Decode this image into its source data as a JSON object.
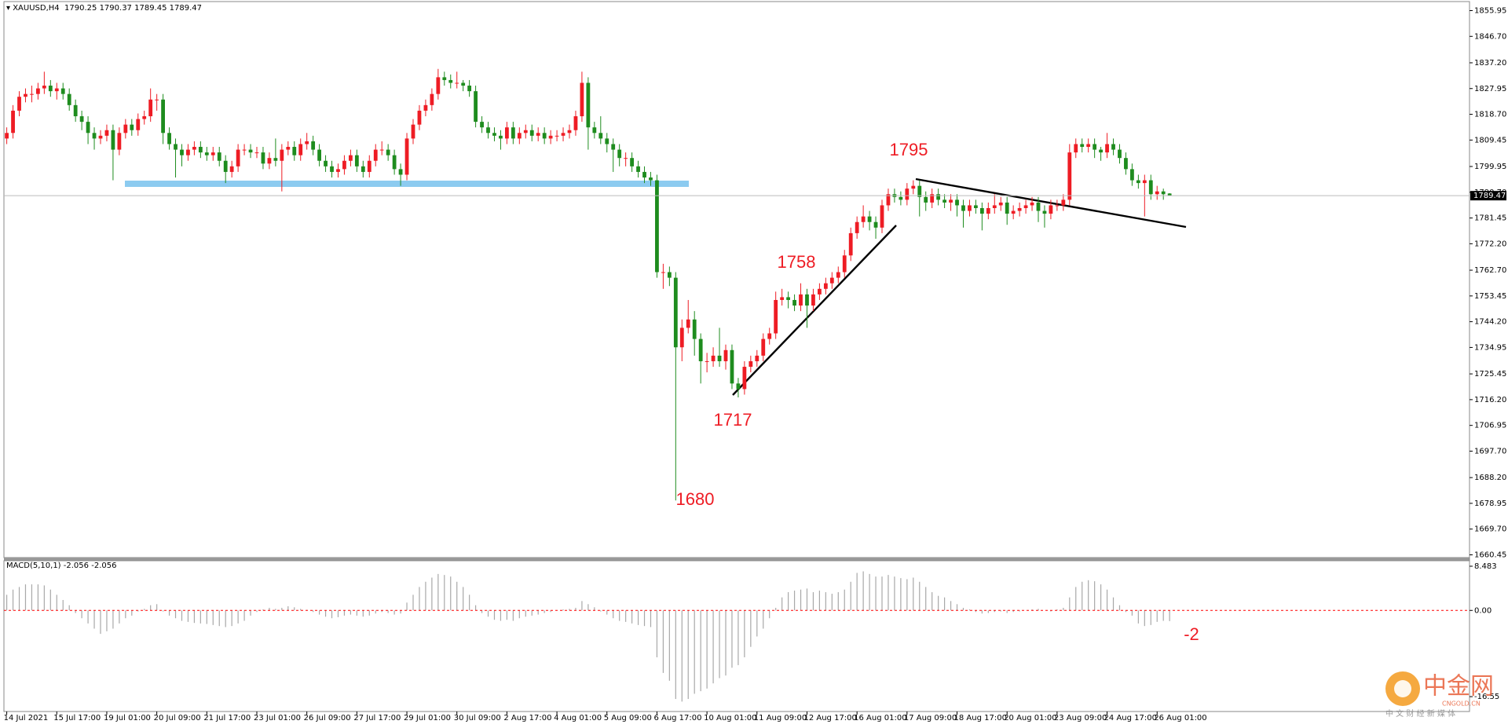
{
  "chart_data": {
    "type": "candlestick",
    "symbol": "XAUUSD,H4",
    "up_color": "#ee1c24",
    "down_color": "#1e8c1e",
    "categories": [
      "14 Jul 2021",
      null,
      null,
      null,
      null,
      null,
      null,
      null,
      "15 Jul 17:00",
      null,
      null,
      null,
      null,
      null,
      null,
      null,
      "19 Jul 01:00",
      null,
      null,
      null,
      null,
      null,
      null,
      null,
      "20 Jul 09:00",
      null,
      null,
      null,
      null,
      null,
      null,
      null,
      "21 Jul 17:00",
      null,
      null,
      null,
      null,
      null,
      null,
      null,
      "23 Jul 01:00",
      null,
      null,
      null,
      null,
      null,
      null,
      null,
      "26 Jul 09:00",
      null,
      null,
      null,
      null,
      null,
      null,
      null,
      "27 Jul 17:00",
      null,
      null,
      null,
      null,
      null,
      null,
      null,
      "29 Jul 01:00",
      null,
      null,
      null,
      null,
      null,
      null,
      null,
      "30 Jul 09:00",
      null,
      null,
      null,
      null,
      null,
      null,
      null,
      "2 Aug 17:00",
      null,
      null,
      null,
      null,
      null,
      null,
      null,
      "4 Aug 01:00",
      null,
      null,
      null,
      null,
      null,
      null,
      null,
      "5 Aug 09:00",
      null,
      null,
      null,
      null,
      null,
      null,
      null,
      "6 Aug 17:00",
      null,
      null,
      null,
      null,
      null,
      null,
      null,
      "10 Aug 01:00",
      null,
      null,
      null,
      null,
      null,
      null,
      null,
      "11 Aug 09:00",
      null,
      null,
      null,
      null,
      null,
      null,
      null,
      "12 Aug 17:00",
      null,
      null,
      null,
      null,
      null,
      null,
      null,
      "16 Aug 01:00",
      null,
      null,
      null,
      null,
      null,
      null,
      null,
      "17 Aug 09:00",
      null,
      null,
      null,
      null,
      null,
      null,
      null,
      "18 Aug 17:00",
      null,
      null,
      null,
      null,
      null,
      null,
      null,
      "20 Aug 01:00",
      null,
      null,
      null,
      null,
      null,
      null,
      null,
      "23 Aug 09:00",
      null,
      null,
      null,
      null,
      null,
      null,
      null,
      "24 Aug 17:00",
      null,
      null,
      null,
      null,
      null,
      null,
      null,
      "26 Aug 01:00",
      null,
      null
    ],
    "candles": {
      "open": [
        1810,
        1812,
        1820,
        1825,
        1826,
        1826,
        1828,
        1829,
        1827,
        1828,
        1826,
        1822,
        1818,
        1816,
        1812,
        1810,
        1811,
        1813,
        1806,
        1812,
        1815,
        1813,
        1817,
        1818,
        1824,
        1824,
        1812,
        1808,
        1806,
        1804,
        1806,
        1807,
        1805,
        1804,
        1805,
        1802,
        1798,
        1800,
        1806,
        1806,
        1805,
        1805,
        1801,
        1803,
        1802,
        1806,
        1807,
        1804,
        1808,
        1809,
        1806,
        1802,
        1800,
        1798,
        1799,
        1802,
        1804,
        1800,
        1798,
        1802,
        1806,
        1806,
        1804,
        1799,
        1797,
        1810,
        1815,
        1820,
        1822,
        1826,
        1832,
        1831,
        1830,
        1830,
        1829,
        1827,
        1816,
        1814,
        1812,
        1811,
        1810,
        1814,
        1810,
        1812,
        1813,
        1811,
        1812,
        1810,
        1811,
        1811,
        1812,
        1813,
        1818,
        1830,
        1814,
        1812,
        1810,
        1808,
        1806,
        1803,
        1803,
        1800,
        1798,
        1796,
        1795,
        1762,
        1762,
        1760,
        1735,
        1742,
        1745,
        1738,
        1730,
        1730,
        1732,
        1730,
        1734,
        1722,
        1720,
        1728,
        1730,
        1732,
        1738,
        1740,
        1752,
        1753,
        1752,
        1750,
        1754,
        1750,
        1754,
        1756,
        1758,
        1760,
        1762,
        1768,
        1776,
        1780,
        1782,
        1780,
        1778,
        1786,
        1790,
        1789,
        1788,
        1792,
        1793,
        1789,
        1787,
        1790,
        1788,
        1787,
        1788,
        1786,
        1784,
        1786,
        1785,
        1783,
        1785,
        1786,
        1787,
        1783,
        1784,
        1785,
        1786,
        1787,
        1784,
        1783,
        1786,
        1786,
        1788,
        1805,
        1808,
        1807,
        1808,
        1806,
        1805,
        1808,
        1806,
        1803,
        1799,
        1795,
        1794,
        1795,
        1790,
        1791,
        1790.25
      ],
      "high": [
        1814,
        1822,
        1827,
        1828,
        1829,
        1830,
        1834,
        1831,
        1830,
        1830,
        1828,
        1824,
        1820,
        1818,
        1814,
        1813,
        1815,
        1815,
        1814,
        1817,
        1817,
        1819,
        1820,
        1828,
        1826,
        1826,
        1814,
        1810,
        1808,
        1808,
        1809,
        1809,
        1807,
        1807,
        1807,
        1804,
        1802,
        1808,
        1808,
        1808,
        1807,
        1807,
        1805,
        1810,
        1808,
        1809,
        1809,
        1810,
        1812,
        1811,
        1808,
        1804,
        1802,
        1801,
        1804,
        1806,
        1806,
        1802,
        1804,
        1808,
        1809,
        1808,
        1806,
        1801,
        1812,
        1817,
        1822,
        1824,
        1828,
        1835,
        1834,
        1833,
        1834,
        1831,
        1831,
        1829,
        1818,
        1816,
        1814,
        1813,
        1816,
        1816,
        1814,
        1815,
        1815,
        1814,
        1814,
        1813,
        1813,
        1814,
        1815,
        1820,
        1834,
        1832,
        1816,
        1818,
        1812,
        1810,
        1808,
        1805,
        1805,
        1802,
        1800,
        1798,
        1797,
        1765,
        1764,
        1762,
        1745,
        1752,
        1748,
        1740,
        1733,
        1735,
        1742,
        1736,
        1736,
        1724,
        1730,
        1732,
        1734,
        1740,
        1742,
        1755,
        1756,
        1755,
        1754,
        1758,
        1756,
        1756,
        1758,
        1760,
        1762,
        1764,
        1770,
        1778,
        1782,
        1786,
        1784,
        1782,
        1788,
        1792,
        1792,
        1791,
        1794,
        1795,
        1795,
        1791,
        1792,
        1792,
        1790,
        1790,
        1790,
        1788,
        1788,
        1788,
        1787,
        1787,
        1790,
        1789,
        1789,
        1786,
        1787,
        1788,
        1789,
        1789,
        1786,
        1788,
        1788,
        1790,
        1808,
        1810,
        1810,
        1810,
        1810,
        1807,
        1812,
        1810,
        1808,
        1805,
        1801,
        1797,
        1797,
        1797,
        1793,
        1792,
        1790.37
      ],
      "low": [
        1808,
        1810,
        1818,
        1823,
        1823,
        1824,
        1826,
        1825,
        1824,
        1824,
        1820,
        1816,
        1813,
        1808,
        1806,
        1808,
        1809,
        1795,
        1804,
        1810,
        1811,
        1811,
        1815,
        1816,
        1820,
        1808,
        1806,
        1796,
        1800,
        1802,
        1804,
        1803,
        1802,
        1802,
        1800,
        1794,
        1796,
        1798,
        1804,
        1803,
        1803,
        1799,
        1799,
        1800,
        1791,
        1804,
        1802,
        1802,
        1806,
        1804,
        1800,
        1798,
        1796,
        1796,
        1797,
        1800,
        1798,
        1796,
        1796,
        1800,
        1804,
        1802,
        1797,
        1793,
        1795,
        1808,
        1813,
        1818,
        1820,
        1824,
        1829,
        1828,
        1828,
        1827,
        1825,
        1814,
        1812,
        1810,
        1809,
        1806,
        1808,
        1808,
        1808,
        1810,
        1809,
        1809,
        1808,
        1808,
        1809,
        1809,
        1810,
        1811,
        1816,
        1806,
        1810,
        1808,
        1805,
        1798,
        1800,
        1800,
        1798,
        1796,
        1794,
        1793,
        1760,
        1756,
        1757,
        1680,
        1730,
        1740,
        1732,
        1722,
        1726,
        1728,
        1728,
        1727,
        1720,
        1717,
        1718,
        1726,
        1728,
        1730,
        1736,
        1738,
        1750,
        1749,
        1748,
        1748,
        1742,
        1748,
        1752,
        1754,
        1756,
        1758,
        1760,
        1766,
        1774,
        1778,
        1777,
        1774,
        1776,
        1784,
        1787,
        1786,
        1786,
        1790,
        1782,
        1784,
        1785,
        1786,
        1785,
        1784,
        1782,
        1778,
        1782,
        1783,
        1777,
        1781,
        1783,
        1784,
        1779,
        1781,
        1782,
        1783,
        1784,
        1780,
        1778,
        1781,
        1784,
        1784,
        1786,
        1803,
        1805,
        1805,
        1803,
        1802,
        1803,
        1804,
        1801,
        1797,
        1793,
        1792,
        1782,
        1788,
        1788,
        1788,
        1789.45
      ],
      "close": [
        1812,
        1820,
        1825,
        1826,
        1826,
        1828,
        1829,
        1827,
        1828,
        1826,
        1822,
        1818,
        1816,
        1812,
        1810,
        1811,
        1813,
        1806,
        1812,
        1815,
        1813,
        1817,
        1818,
        1824,
        1824,
        1812,
        1808,
        1806,
        1804,
        1806,
        1807,
        1805,
        1804,
        1805,
        1802,
        1798,
        1800,
        1806,
        1806,
        1805,
        1805,
        1801,
        1803,
        1802,
        1806,
        1807,
        1804,
        1808,
        1809,
        1806,
        1802,
        1800,
        1798,
        1799,
        1802,
        1804,
        1800,
        1798,
        1802,
        1806,
        1806,
        1804,
        1799,
        1797,
        1810,
        1815,
        1820,
        1822,
        1826,
        1832,
        1831,
        1830,
        1830,
        1829,
        1827,
        1816,
        1814,
        1812,
        1811,
        1810,
        1814,
        1810,
        1812,
        1813,
        1811,
        1812,
        1810,
        1811,
        1811,
        1812,
        1813,
        1818,
        1830,
        1814,
        1812,
        1810,
        1808,
        1806,
        1803,
        1803,
        1800,
        1798,
        1796,
        1795,
        1762,
        1762,
        1760,
        1735,
        1742,
        1745,
        1738,
        1730,
        1730,
        1732,
        1730,
        1734,
        1722,
        1720,
        1728,
        1730,
        1732,
        1738,
        1740,
        1752,
        1753,
        1752,
        1750,
        1754,
        1750,
        1754,
        1756,
        1758,
        1760,
        1762,
        1768,
        1776,
        1780,
        1782,
        1780,
        1778,
        1786,
        1790,
        1789,
        1788,
        1792,
        1793,
        1789,
        1787,
        1790,
        1788,
        1787,
        1788,
        1786,
        1784,
        1786,
        1785,
        1783,
        1785,
        1786,
        1787,
        1783,
        1784,
        1785,
        1786,
        1787,
        1784,
        1783,
        1786,
        1786,
        1788,
        1805,
        1808,
        1807,
        1808,
        1806,
        1805,
        1808,
        1806,
        1803,
        1799,
        1795,
        1794,
        1795,
        1790,
        1791,
        1790,
        1789.47
      ]
    },
    "ylim": [
      1660.45,
      1855.95
    ],
    "yticks": [
      1855.95,
      {
        "value": 1846.7,
        "label": "1846.70"
      },
      {
        "value": 1837.2,
        "label": "1837.20"
      },
      1827.95,
      {
        "value": 1818.7,
        "label": "1818.70"
      },
      1809.45,
      1799.95,
      {
        "value": 1790.7,
        "label": "1790.70"
      },
      1781.45,
      {
        "value": 1772.2,
        "label": "1772.20"
      },
      {
        "value": 1762.7,
        "label": "1762.70"
      },
      1753.45,
      {
        "value": 1744.2,
        "label": "1744.20"
      },
      1734.95,
      1725.45,
      {
        "value": 1716.2,
        "label": "1716.20"
      },
      1706.95,
      {
        "value": 1697.7,
        "label": "1697.70"
      },
      {
        "value": 1688.2,
        "label": "1688.20"
      },
      1678.95,
      {
        "value": 1669.7,
        "label": "1669.70"
      },
      1660.45
    ],
    "annotations": [
      "1795",
      "1758",
      "1717",
      "1680",
      "-2"
    ],
    "macd": {
      "type": "bar",
      "name": "MACD(5,10,1)",
      "color": "#a8a8a8",
      "zero_line_color": "#ff0000",
      "ylim": [
        -18.5,
        8.483
      ],
      "yticks": [
        8.483,
        {
          "value": 0,
          "label": "0.00"
        },
        -16.55
      ],
      "values": [
        3,
        4,
        4.5,
        5,
        5,
        5,
        4.8,
        4,
        3,
        2,
        1,
        -0.5,
        -1.5,
        -2.5,
        -3.5,
        -4.5,
        -4,
        -3.5,
        -2.5,
        -1.5,
        -1,
        -0.2,
        0.3,
        1,
        1.2,
        -0.2,
        -1,
        -1.5,
        -2,
        -2.2,
        -2.4,
        -2.5,
        -2.6,
        -2.8,
        -3,
        -3.2,
        -3,
        -2.5,
        -2,
        -1,
        -0.3,
        0.2,
        0.5,
        0.3,
        0.5,
        0.8,
        0.6,
        0.3,
        0.1,
        -0.3,
        -0.8,
        -1.2,
        -1.5,
        -1.3,
        -1,
        -0.8,
        -1,
        -1.2,
        -1,
        -0.6,
        -0.3,
        -0.5,
        -0.8,
        -0.6,
        1.5,
        3,
        4.5,
        5.5,
        6.3,
        7,
        6.8,
        6.5,
        5.5,
        4.5,
        3,
        1,
        -0.5,
        -1.2,
        -1.8,
        -2,
        -1.8,
        -2,
        -1.5,
        -1.2,
        -1,
        -0.8,
        -0.5,
        -0.3,
        0,
        0.2,
        0.3,
        0.5,
        1.8,
        1.2,
        0.6,
        -0.2,
        -0.8,
        -1.5,
        -2,
        -2.2,
        -2.5,
        -2.8,
        -3,
        -3.2,
        -9,
        -12,
        -13.5,
        -17,
        -17.5,
        -17,
        -16,
        -15.5,
        -15,
        -14,
        -13,
        -12.5,
        -11,
        -10.5,
        -9,
        -7,
        -5,
        -3.5,
        -1.5,
        0.5,
        2.5,
        3.5,
        3.8,
        4,
        4.2,
        3.5,
        3.8,
        3.5,
        3.2,
        3.5,
        4,
        5.5,
        7.2,
        7.5,
        7,
        6.5,
        6.5,
        6.8,
        6.5,
        6.2,
        6,
        6.3,
        5.5,
        4.5,
        3.5,
        2.8,
        2.5,
        1.8,
        1.2,
        0.5,
        0.2,
        -0.3,
        -0.6,
        -0.5,
        -0.3,
        -0.2,
        -0.5,
        -0.3,
        -0.2,
        0,
        0.2,
        0.3,
        0,
        -0.2,
        0.2,
        0.5,
        2.5,
        4.5,
        5.5,
        5.8,
        5.6,
        5,
        4,
        2.5,
        1,
        -0.3,
        -1,
        -2.5,
        -3,
        -2.8,
        -2.2,
        -2,
        -2.056
      ]
    },
    "watermark": {
      "name": "中金网",
      "site": "CNGOLD.CN",
      "tagline": "中 文 财 经 新 媒 体"
    }
  }
}
